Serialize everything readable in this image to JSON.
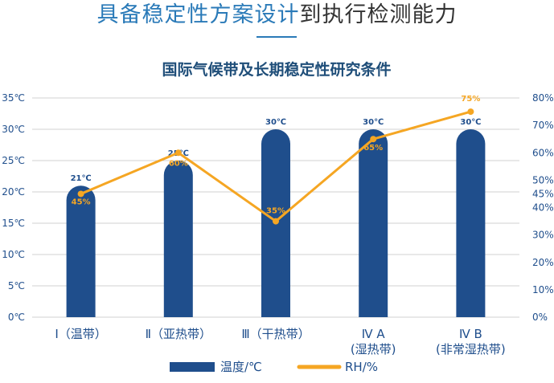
{
  "header": {
    "title_highlight": "具备稳定性方案设计",
    "title_rest": "到执行检测能力"
  },
  "chart_data": {
    "type": "bar",
    "title": "国际气候带及长期稳定性研究条件",
    "categories": [
      [
        "Ⅰ（温带）"
      ],
      [
        "Ⅱ（亚热带）"
      ],
      [
        "Ⅲ（干热带）"
      ],
      [
        "Ⅳ A",
        "(湿热带)"
      ],
      [
        "Ⅳ B",
        "(非常湿热带)"
      ]
    ],
    "series": [
      {
        "name": "温度/℃",
        "type": "bar",
        "axis": "left",
        "values": [
          21,
          25,
          30,
          30,
          30
        ],
        "labels": [
          "21℃",
          "25℃",
          "30℃",
          "30℃",
          "30℃"
        ],
        "color": "#1f4e8c"
      },
      {
        "name": "RH/%",
        "type": "line",
        "axis": "right",
        "values": [
          45,
          60,
          35,
          65,
          75
        ],
        "labels": [
          "45%",
          "60%",
          "35%",
          "65%",
          "75%"
        ],
        "color": "#f5a623"
      }
    ],
    "left_axis": {
      "ylim": [
        0,
        35
      ],
      "ticks": [
        0,
        5,
        10,
        15,
        20,
        25,
        30,
        35
      ],
      "tick_labels": [
        "0℃",
        "5℃",
        "10℃",
        "15℃",
        "20℃",
        "25℃",
        "30℃",
        "35℃"
      ]
    },
    "right_axis": {
      "ylim": [
        0,
        80
      ],
      "ticks": [
        0,
        10,
        20,
        30,
        40,
        45,
        50,
        60,
        70,
        80
      ],
      "tick_labels": [
        "0%",
        "10%",
        "20%",
        "30%",
        "40%",
        "45%",
        "50%",
        "60%",
        "70%",
        "80%"
      ]
    },
    "grid": true,
    "legend_position": "bottom"
  }
}
